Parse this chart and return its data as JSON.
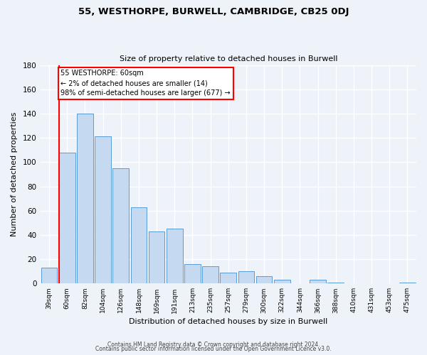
{
  "title1": "55, WESTHORPE, BURWELL, CAMBRIDGE, CB25 0DJ",
  "title2": "Size of property relative to detached houses in Burwell",
  "xlabel": "Distribution of detached houses by size in Burwell",
  "ylabel": "Number of detached properties",
  "bar_labels": [
    "39sqm",
    "60sqm",
    "82sqm",
    "104sqm",
    "126sqm",
    "148sqm",
    "169sqm",
    "191sqm",
    "213sqm",
    "235sqm",
    "257sqm",
    "279sqm",
    "300sqm",
    "322sqm",
    "344sqm",
    "366sqm",
    "388sqm",
    "410sqm",
    "431sqm",
    "453sqm",
    "475sqm"
  ],
  "bar_values": [
    13,
    108,
    140,
    121,
    95,
    63,
    43,
    45,
    16,
    14,
    9,
    10,
    6,
    3,
    0,
    3,
    1,
    0,
    0,
    0,
    1
  ],
  "bar_color": "#c5d9f0",
  "bar_edge_color": "#5b9bd5",
  "annotation_text": "55 WESTHORPE: 60sqm\n← 2% of detached houses are smaller (14)\n98% of semi-detached houses are larger (677) →",
  "ylim": [
    0,
    180
  ],
  "yticks": [
    0,
    20,
    40,
    60,
    80,
    100,
    120,
    140,
    160,
    180
  ],
  "footer1": "Contains HM Land Registry data © Crown copyright and database right 2024.",
  "footer2": "Contains public sector information licensed under the Open Government Licence v3.0.",
  "bg_color": "#eef2f9"
}
